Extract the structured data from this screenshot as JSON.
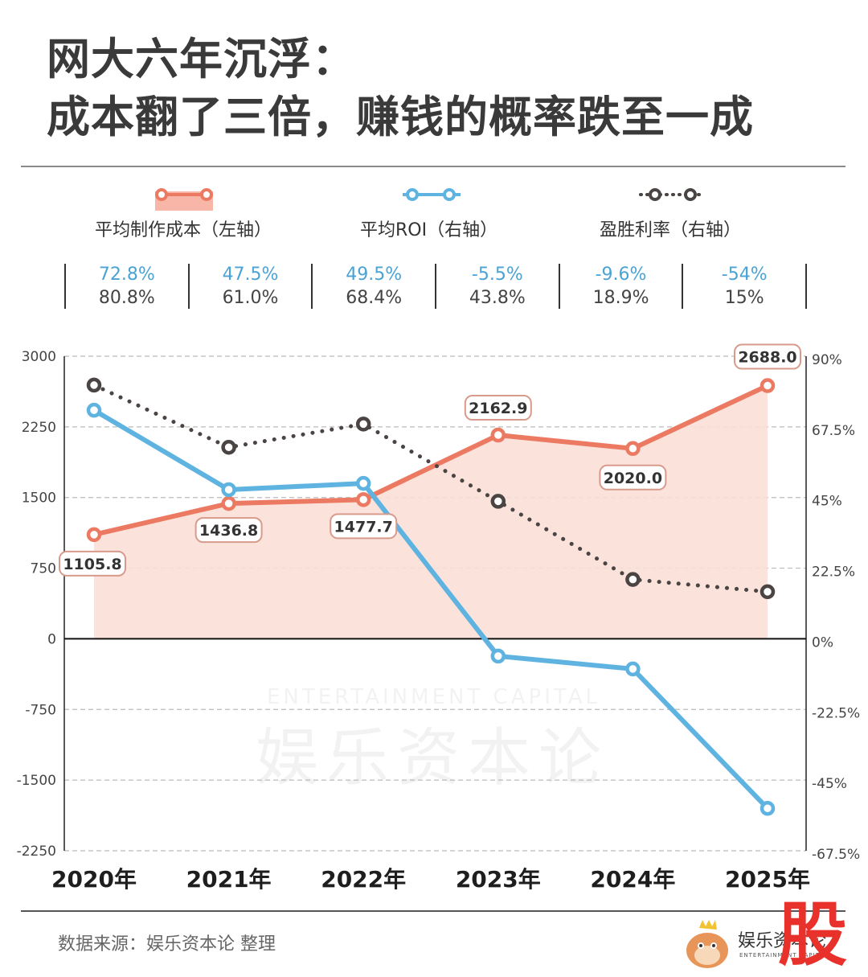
{
  "title": {
    "line1": "网大六年沉浮：",
    "line2": "成本翻了三倍，赚钱的概率跌至一成"
  },
  "legend": [
    {
      "label": "平均制作成本（左轴）",
      "icon": "line-with-area-icon",
      "color": "#ec7a63"
    },
    {
      "label": "平均ROI（右轴）",
      "icon": "line-icon",
      "color": "#5fb3e0"
    },
    {
      "label": "盈胜利率（右轴）",
      "icon": "dotted-line-icon",
      "color": "#4a4443"
    }
  ],
  "stats": [
    {
      "roi": "72.8%",
      "win": "80.8%"
    },
    {
      "roi": "47.5%",
      "win": "61.0%"
    },
    {
      "roi": "49.5%",
      "win": "68.4%"
    },
    {
      "roi": "-5.5%",
      "win": "43.8%"
    },
    {
      "roi": "-9.6%",
      "win": "18.9%"
    },
    {
      "roi": "-54%",
      "win": "15%"
    }
  ],
  "chart_data": {
    "type": "line",
    "title": "网大六年沉浮：成本翻了三倍，赚钱的概率跌至一成",
    "categories": [
      "2020年",
      "2021年",
      "2022年",
      "2023年",
      "2024年",
      "2025年"
    ],
    "left_axis": {
      "label": "平均制作成本",
      "ticks": [
        "3000",
        "2250",
        "1500",
        "750",
        "0",
        "-750",
        "-1500",
        "-2250"
      ],
      "range": [
        -2250,
        3000
      ]
    },
    "right_axis": {
      "label": "%",
      "ticks": [
        "90%",
        "67.5%",
        "45%",
        "22.5%",
        "0%",
        "-22.5%",
        "-45%",
        "-67.5%"
      ],
      "range": [
        -67.5,
        90
      ]
    },
    "grid": true,
    "legend_position": "top",
    "series": [
      {
        "name": "平均制作成本（左轴）",
        "axis": "left",
        "style": "solid-area",
        "color": "#ec7a63",
        "values": [
          1105.8,
          1436.8,
          1477.7,
          2162.9,
          2020.0,
          2688.0
        ],
        "labels": [
          "1105.8",
          "1436.8",
          "1477.7",
          "2162.9",
          "2020.0",
          "2688.0"
        ],
        "label_pos": [
          "below",
          "below",
          "below",
          "above",
          "below",
          "above"
        ]
      },
      {
        "name": "平均ROI（右轴）",
        "axis": "right",
        "style": "solid",
        "color": "#5fb3e0",
        "values": [
          72.8,
          47.5,
          49.5,
          -5.5,
          -9.6,
          -54
        ]
      },
      {
        "name": "盈胜利率（右轴）",
        "axis": "right",
        "style": "dotted",
        "color": "#4a4443",
        "values": [
          80.8,
          61.0,
          68.4,
          43.8,
          18.9,
          15
        ]
      }
    ]
  },
  "watermark": {
    "cn": "娱乐资本论",
    "en": "ENTERTAINMENT CAPITAL"
  },
  "footer": {
    "source": "数据来源：娱乐资本论 整理",
    "brand": "娱乐资本论",
    "brand_sub": "ENTERTAINMENT CAPITAL",
    "stamp": "股"
  }
}
